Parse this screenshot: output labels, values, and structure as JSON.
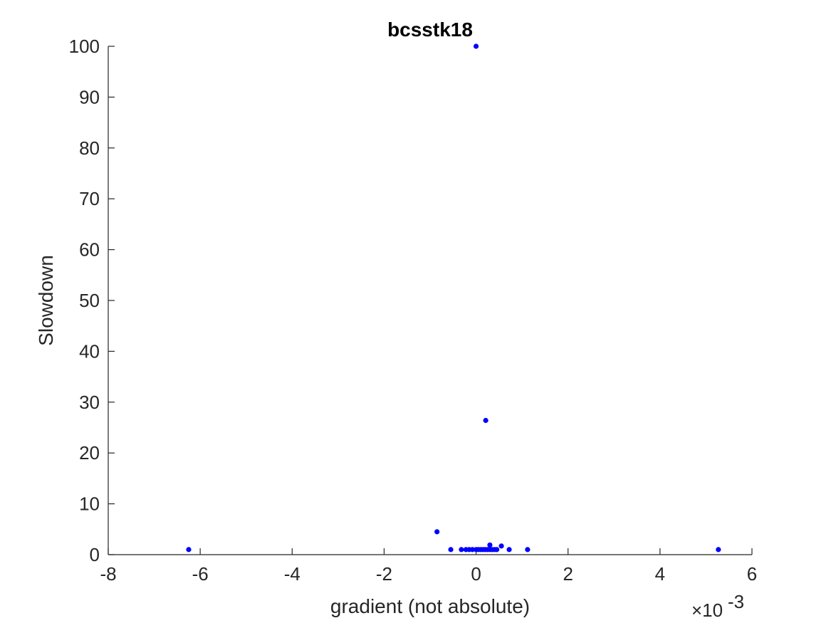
{
  "chart_data": {
    "type": "scatter",
    "title": "bcsstk18",
    "xlabel": "gradient (not absolute)",
    "ylabel": "Slowdown",
    "x_exponent_label": "×10",
    "x_exponent_power": "-3",
    "xlim": [
      -8,
      6
    ],
    "ylim": [
      0,
      100
    ],
    "xticks": [
      -8,
      -6,
      -4,
      -2,
      0,
      2,
      4,
      6
    ],
    "yticks": [
      0,
      10,
      20,
      30,
      40,
      50,
      60,
      70,
      80,
      90,
      100
    ],
    "x_scale_factor": 0.001,
    "grid": false,
    "box": "off",
    "marker_color": "#0000ff",
    "series": [
      {
        "x": [
          0.0,
          0.21,
          -0.85,
          -6.25,
          -0.55,
          -0.32,
          -0.22,
          -0.15,
          -0.08,
          0.0,
          0.05,
          0.1,
          0.15,
          0.2,
          0.25,
          0.3,
          0.35,
          0.4,
          0.45,
          0.3,
          0.55,
          0.72,
          1.12,
          5.27
        ],
        "y": [
          100,
          26.4,
          4.5,
          1.0,
          1.0,
          1.0,
          1.0,
          1.0,
          1.0,
          1.0,
          1.0,
          1.0,
          1.0,
          1.0,
          1.0,
          1.0,
          1.0,
          1.0,
          1.0,
          1.9,
          1.7,
          1.0,
          1.0,
          1.0
        ]
      }
    ]
  }
}
